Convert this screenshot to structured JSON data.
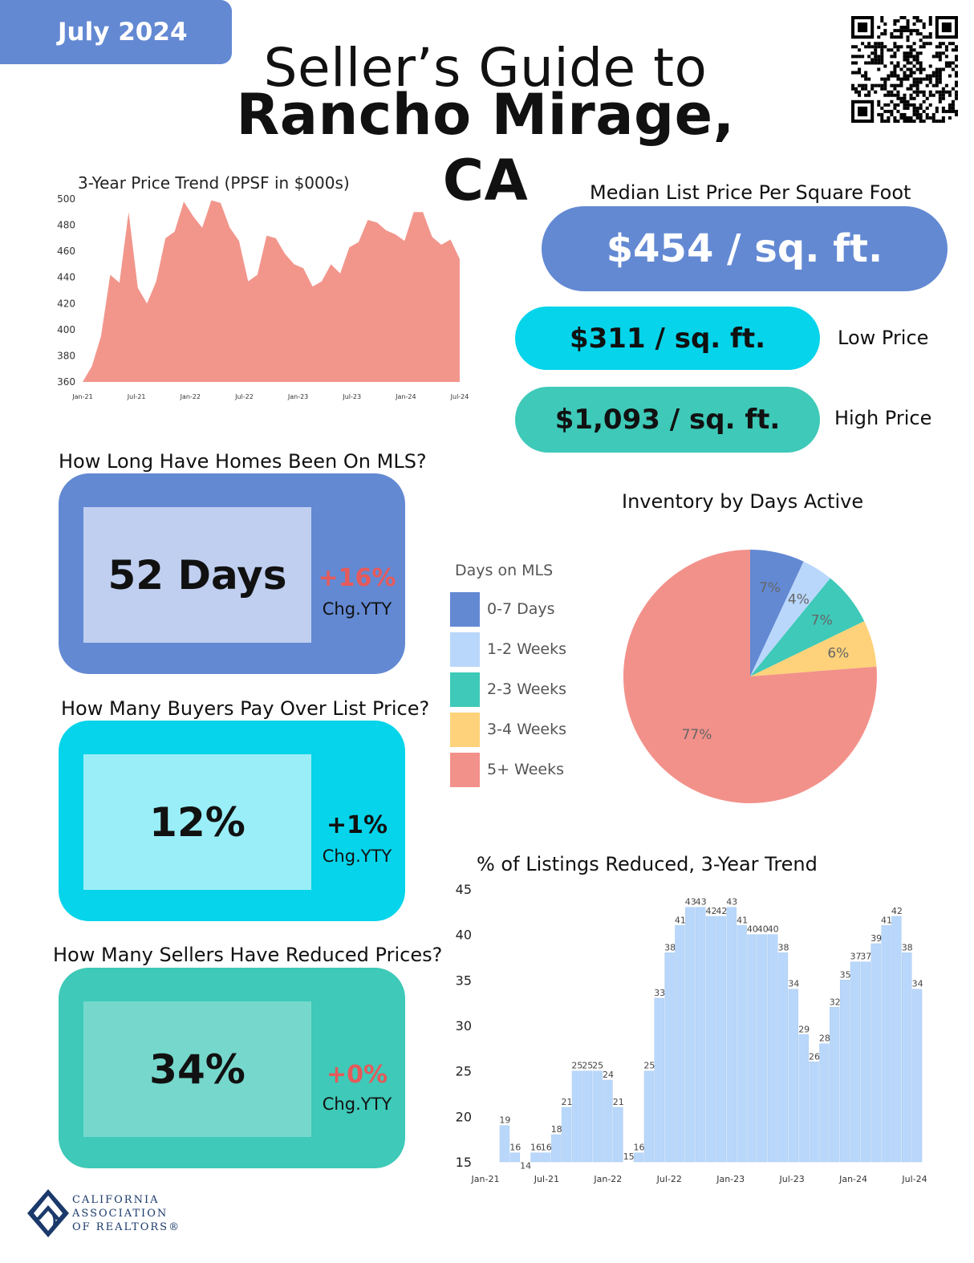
{
  "header": {
    "date": "July 2024",
    "title_line1": "Seller’s Guide to",
    "title_line2": "Rancho Mirage, CA"
  },
  "colors": {
    "blue": "#6389d3",
    "cyan": "#06d4ea",
    "teal": "#3ec9b8",
    "salmon": "#f2968c",
    "light_blue": "#b9d7fb",
    "pink_red": "#e55a5a"
  },
  "icons": {
    "qr": "qr-code-icon",
    "logo": "car-logo-icon"
  },
  "prices": {
    "median_label": "Median List Price Per Square Foot",
    "median_value": "$454 / sq. ft.",
    "low_value": "$311 / sq. ft.",
    "low_label": "Low Price",
    "high_value": "$1,093 / sq. ft.",
    "high_label": "High Price"
  },
  "stats": [
    {
      "title": "How Long Have Homes Been On MLS?",
      "value": "52 Days",
      "change": "+16%",
      "change_color": "#e55a5a",
      "change_label": "Chg.YTY"
    },
    {
      "title": "How Many Buyers Pay Over List Price?",
      "value": "12%",
      "change": "+1%",
      "change_color": "#111111",
      "change_label": "Chg.YTY"
    },
    {
      "title": "How Many Sellers Have Reduced Prices?",
      "value": "34%",
      "change": "+0%",
      "change_color": "#e55a5a",
      "change_label": "Chg.YTY"
    }
  ],
  "footer": {
    "org_line1": "CALIFORNIA",
    "org_line2": "ASSOCIATION",
    "org_line3": "OF REALTORS®"
  },
  "chart_data": [
    {
      "type": "area",
      "title": "3-Year Price Trend (PPSF in $000s)",
      "ylim": [
        360,
        500
      ],
      "yticks": [
        "360",
        "380",
        "400",
        "420",
        "440",
        "460",
        "480",
        "500"
      ],
      "xticks": [
        "Jan-21",
        "Jul-21",
        "Jan-22",
        "Jul-22",
        "Jan-23",
        "Jul-23",
        "Jan-24",
        "Jul-24"
      ],
      "values": [
        360,
        372,
        395,
        442,
        436,
        490,
        432,
        420,
        437,
        470,
        475,
        498,
        487,
        478,
        499,
        497,
        478,
        468,
        437,
        442,
        472,
        470,
        458,
        450,
        447,
        433,
        437,
        450,
        443,
        463,
        467,
        484,
        482,
        476,
        473,
        468,
        490,
        490,
        471,
        465,
        469,
        454
      ],
      "color": "#f2968c"
    },
    {
      "type": "pie",
      "title": "Inventory by Days Active",
      "legend_title": "Days on MLS",
      "categories": [
        "0-7 Days",
        "1-2 Weeks",
        "2-3 Weeks",
        "3-4 Weeks",
        "5+ Weeks"
      ],
      "values": [
        7,
        4,
        7,
        6,
        77
      ],
      "labels": [
        "7%",
        "4%",
        "7%",
        "6%",
        "77%"
      ],
      "colors": [
        "#6389d3",
        "#b9d7fb",
        "#3ec9b8",
        "#fdd27a",
        "#f2918a"
      ]
    },
    {
      "type": "bar",
      "title": "% of Listings Reduced, 3-Year Trend",
      "ylim": [
        15,
        45
      ],
      "yticks": [
        "15",
        "20",
        "25",
        "30",
        "35",
        "40",
        "45"
      ],
      "xticks": [
        "Jan-21",
        "Jul-21",
        "Jan-22",
        "Jul-22",
        "Jan-23",
        "Jul-23",
        "Jan-24",
        "Jul-24"
      ],
      "values": [
        19,
        16,
        14,
        16,
        16,
        18,
        21,
        25,
        25,
        25,
        24,
        21,
        15,
        16,
        25,
        33,
        38,
        41,
        43,
        43,
        42,
        42,
        43,
        41,
        40,
        40,
        40,
        38,
        34,
        29,
        26,
        28,
        32,
        35,
        37,
        37,
        39,
        41,
        42,
        38,
        34
      ],
      "color": "#b9d7fb"
    }
  ]
}
